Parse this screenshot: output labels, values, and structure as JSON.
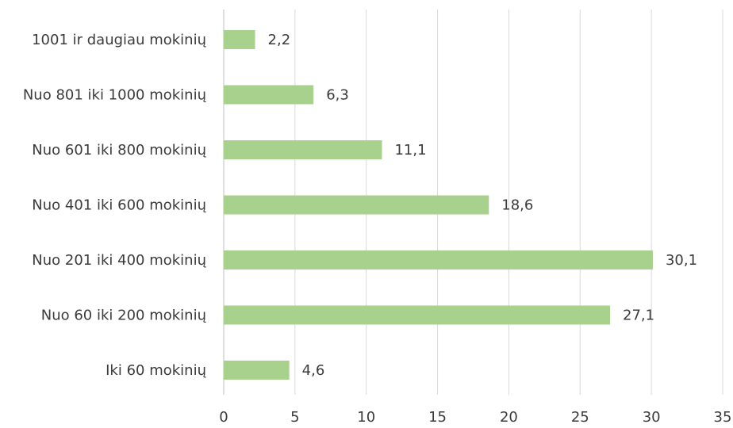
{
  "chart_data": {
    "type": "bar",
    "orientation": "horizontal",
    "categories": [
      "1001 ir daugiau mokinių",
      "Nuo 801 iki 1000 mokinių",
      "Nuo 601 iki 800 mokinių",
      "Nuo 401 iki 600 mokinių",
      "Nuo 201 iki 400 mokinių",
      "Nuo 60 iki 200 mokinių",
      "Iki 60 mokinių"
    ],
    "values": [
      2.2,
      6.3,
      11.1,
      18.6,
      30.1,
      27.1,
      4.6
    ],
    "value_labels": [
      "2,2",
      "6,3",
      "11,1",
      "18,6",
      "30,1",
      "27,1",
      "4,6"
    ],
    "xlim": [
      0,
      35
    ],
    "xticks": [
      0,
      5,
      10,
      15,
      20,
      25,
      30,
      35
    ],
    "grid": true,
    "legend": "none",
    "bar_color": "#a9d18e",
    "title": "",
    "xlabel": "",
    "ylabel": ""
  }
}
